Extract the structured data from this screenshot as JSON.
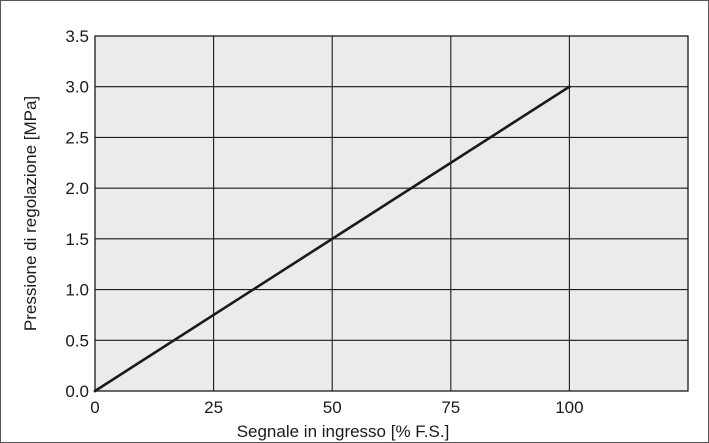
{
  "chart_data": {
    "type": "line",
    "xlabel": "Segnale in ingresso [% F.S.]",
    "ylabel": "Pressione di regolazione [MPa]",
    "xlim": [
      0,
      125
    ],
    "ylim": [
      0,
      3.5
    ],
    "xticks": [
      0,
      25,
      50,
      75,
      100
    ],
    "xtick_labels": [
      "0",
      "25",
      "50",
      "75",
      "100"
    ],
    "yticks": [
      0,
      0.5,
      1.0,
      1.5,
      2.0,
      2.5,
      3.0,
      3.5
    ],
    "ytick_labels": [
      "0.0",
      "0.5",
      "1.0",
      "1.5",
      "2.0",
      "2.5",
      "3.0",
      "3.5"
    ],
    "grid": true,
    "colors": {
      "plot_background": "#ebebeb",
      "grid": "#1a1a1a",
      "line": "#1a1a1a"
    },
    "series": [
      {
        "x": [
          0,
          100
        ],
        "y": [
          0,
          3.0
        ]
      }
    ]
  }
}
